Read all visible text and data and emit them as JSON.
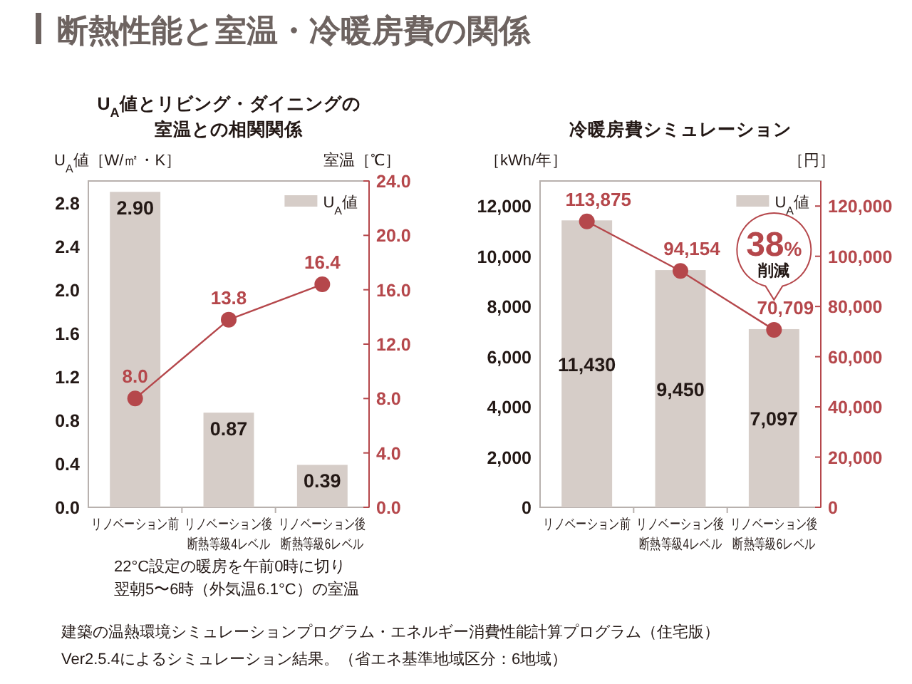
{
  "chart_data": [
    {
      "type": "bar",
      "title": "U$_{A}$値とリビング・ダイニングの室温との相関関係",
      "ylabel": "U$_{A}$値［W/㎡・K］",
      "y2label": "室温［℃］",
      "categories": [
        "リノベーション前",
        "リノベーション後断熱等級4レベル",
        "リノベーション後断熱等級6レベル"
      ],
      "series": [
        {
          "name": "U$_{A}$値",
          "color": "#d6cdc8",
          "values": [
            2.9,
            0.87,
            0.39
          ],
          "value_labels": [
            "2.90",
            "0.87",
            "0.39"
          ]
        },
        {
          "type": "line",
          "axis": "y2",
          "color": "#b5474b",
          "marker": "circle",
          "values": [
            8.0,
            13.8,
            16.4
          ],
          "value_labels": [
            "8.0",
            "13.8",
            "16.4"
          ]
        }
      ],
      "ylim": [
        0,
        3.0
      ],
      "yticks": [
        {
          "value": 0,
          "label": "0.0"
        },
        0.4,
        0.8,
        1.2,
        1.6,
        {
          "value": 2,
          "label": "2.0"
        },
        2.4,
        2.8
      ],
      "y2lim": [
        0,
        24
      ],
      "y2ticks": [
        {
          "value": 0,
          "label": "0.0"
        },
        {
          "value": 4,
          "label": "4.0"
        },
        {
          "value": 8,
          "label": "8.0"
        },
        {
          "value": 12,
          "label": "12.0"
        },
        {
          "value": 16,
          "label": "16.0"
        },
        {
          "value": 20,
          "label": "20.0"
        },
        {
          "value": 24,
          "label": "24.0"
        }
      ],
      "legend": "top right",
      "annotations": [
        "断熱性能と室温・冷暖房費の関係",
        "22°C設定の暖房を午前0時に切り翌朝5〜6時（外気温6.1°C）の室温"
      ]
    },
    {
      "type": "bar",
      "title": "冷暖房費シミュレーション",
      "ylabel": "［kWh/年］",
      "y2label": "［円］",
      "categories": [
        "リノベーション前",
        "リノベーション後断熱等級4レベル",
        "リノベーション後断熱等級6レベル"
      ],
      "series": [
        {
          "name": "U$_{A}$値",
          "color": "#d6cdc8",
          "values": [
            11430,
            9450,
            7097
          ],
          "value_labels": [
            "11,430",
            "9,450",
            "7,097"
          ]
        },
        {
          "type": "line",
          "axis": "y2",
          "color": "#b5474b",
          "marker": "circle",
          "values": [
            113875,
            94154,
            70709
          ],
          "value_labels": [
            "113,875",
            "94,154",
            "70,709"
          ]
        }
      ],
      "ylim": [
        0,
        13000
      ],
      "yticks": [
        0,
        {
          "value": 2000,
          "label": "2,000"
        },
        {
          "value": 4000,
          "label": "4,000"
        },
        {
          "value": 6000,
          "label": "6,000"
        },
        {
          "value": 8000,
          "label": "8,000"
        },
        {
          "value": 10000,
          "label": "10,000"
        },
        {
          "value": 12000,
          "label": "12,000"
        }
      ],
      "y2lim": [
        0,
        130000
      ],
      "y2ticks": [
        0,
        {
          "value": 20000,
          "label": "20,000"
        },
        {
          "value": 40000,
          "label": "40,000"
        },
        {
          "value": 60000,
          "label": "60,000"
        },
        {
          "value": 80000,
          "label": "80,000"
        },
        {
          "value": 100000,
          "label": "100,000"
        },
        {
          "value": 120000,
          "label": "120,000"
        }
      ],
      "legend": "top right",
      "annotations": [
        "38%",
        "削減",
        "建築の温熱環境シミュレーションプログラム・エネルギー消費性能計算プログラム（住宅版）\nVer2.5.4によるシミュレーション結果。（省エネ基準地域区分：6地域）"
      ]
    }
  ]
}
